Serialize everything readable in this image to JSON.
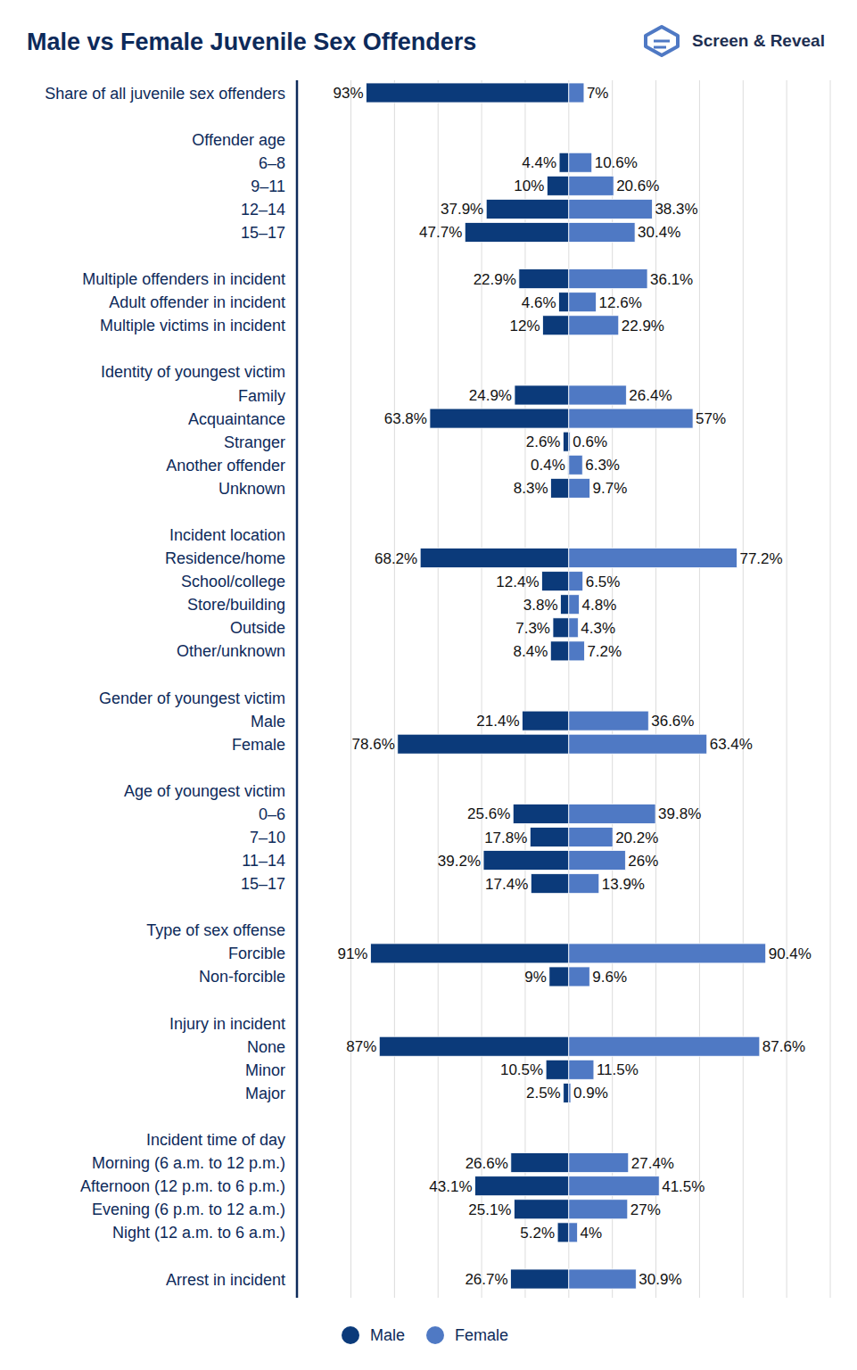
{
  "chart_data": {
    "type": "diverging_bar",
    "title": "Male vs Female Juvenile Sex Offenders",
    "brand": "Screen & Reveal",
    "orientation": "horizontal",
    "grid": true,
    "tick_labels": false,
    "data_labels": true,
    "legend": "bottom",
    "xlim": [
      -100,
      120
    ],
    "xticks": [
      -100,
      -80,
      -60,
      -40,
      -20,
      0,
      20,
      40,
      60,
      80,
      100,
      120
    ],
    "categories": [
      "Share of all juvenile sex offenders",
      null,
      "Offender age",
      "6–8",
      "9–11",
      "12–14",
      "15–17",
      null,
      "Multiple offenders in incident",
      "Adult offender in incident",
      "Multiple victims in incident",
      null,
      "Identity of youngest victim",
      "Family",
      "Acquaintance",
      "Stranger",
      "Another offender",
      "Unknown",
      null,
      "Incident location",
      "Residence/home",
      "School/college",
      "Store/building",
      "Outside",
      "Other/unknown",
      null,
      "Gender of youngest victim",
      "Male",
      "Female",
      null,
      "Age of youngest victim",
      "0–6",
      "7–10",
      "11–14",
      "15–17",
      null,
      "Type of sex offense",
      "Forcible",
      "Non-forcible",
      null,
      "Injury in incident",
      "None",
      "Minor",
      "Major",
      null,
      "Incident time of day",
      "Morning (6 a.m. to 12 p.m.)",
      "Afternoon (12 p.m. to 6 p.m.)",
      "Evening (6 p.m. to 12 a.m.)",
      "Night (12 a.m. to 6 a.m.)",
      null,
      "Arrest in incident"
    ],
    "series": [
      {
        "name": "Male",
        "color": "#0b3a7a",
        "values": [
          93,
          null,
          null,
          4.4,
          10,
          37.9,
          47.7,
          null,
          22.9,
          4.6,
          12,
          null,
          null,
          24.9,
          63.8,
          2.6,
          0.4,
          8.3,
          null,
          null,
          68.2,
          12.4,
          3.8,
          7.3,
          8.4,
          null,
          null,
          21.4,
          78.6,
          null,
          null,
          25.6,
          17.8,
          39.2,
          17.4,
          null,
          null,
          91,
          9,
          null,
          null,
          87,
          10.5,
          2.5,
          null,
          null,
          26.6,
          43.1,
          25.1,
          5.2,
          null,
          26.7
        ],
        "value_labels": [
          "93%",
          null,
          null,
          "4.4%",
          "10%",
          "37.9%",
          "47.7%",
          null,
          "22.9%",
          "4.6%",
          "12%",
          null,
          null,
          "24.9%",
          "63.8%",
          "2.6%",
          "0.4%",
          "8.3%",
          null,
          null,
          "68.2%",
          "12.4%",
          "3.8%",
          "7.3%",
          "8.4%",
          null,
          null,
          "21.4%",
          "78.6%",
          null,
          null,
          "25.6%",
          "17.8%",
          "39.2%",
          "17.4%",
          null,
          null,
          "91%",
          "9%",
          null,
          null,
          "87%",
          "10.5%",
          "2.5%",
          null,
          null,
          "26.6%",
          "43.1%",
          "25.1%",
          "5.2%",
          null,
          "26.7%"
        ]
      },
      {
        "name": "Female",
        "color": "#4f79c4",
        "values": [
          7,
          null,
          null,
          10.6,
          20.6,
          38.3,
          30.4,
          null,
          36.1,
          12.6,
          22.9,
          null,
          null,
          26.4,
          57,
          0.6,
          6.3,
          9.7,
          null,
          null,
          77.2,
          6.5,
          4.8,
          4.3,
          7.2,
          null,
          null,
          36.6,
          63.4,
          null,
          null,
          39.8,
          20.2,
          26,
          13.9,
          null,
          null,
          90.4,
          9.6,
          null,
          null,
          87.6,
          11.5,
          0.9,
          null,
          null,
          27.4,
          41.5,
          27,
          4,
          null,
          30.9
        ],
        "value_labels": [
          "7%",
          null,
          null,
          "10.6%",
          "20.6%",
          "38.3%",
          "30.4%",
          null,
          "36.1%",
          "12.6%",
          "22.9%",
          null,
          null,
          "26.4%",
          "57%",
          "0.6%",
          "6.3%",
          "9.7%",
          null,
          null,
          "77.2%",
          "6.5%",
          "4.8%",
          "4.3%",
          "7.2%",
          null,
          null,
          "36.6%",
          "63.4%",
          null,
          null,
          "39.8%",
          "20.2%",
          "26%",
          "13.9%",
          null,
          null,
          "90.4%",
          "9.6%",
          null,
          null,
          "87.6%",
          "11.5%",
          "0.9%",
          null,
          null,
          "27.4%",
          "41.5%",
          "27%",
          "4%",
          null,
          "30.9%"
        ]
      }
    ]
  }
}
